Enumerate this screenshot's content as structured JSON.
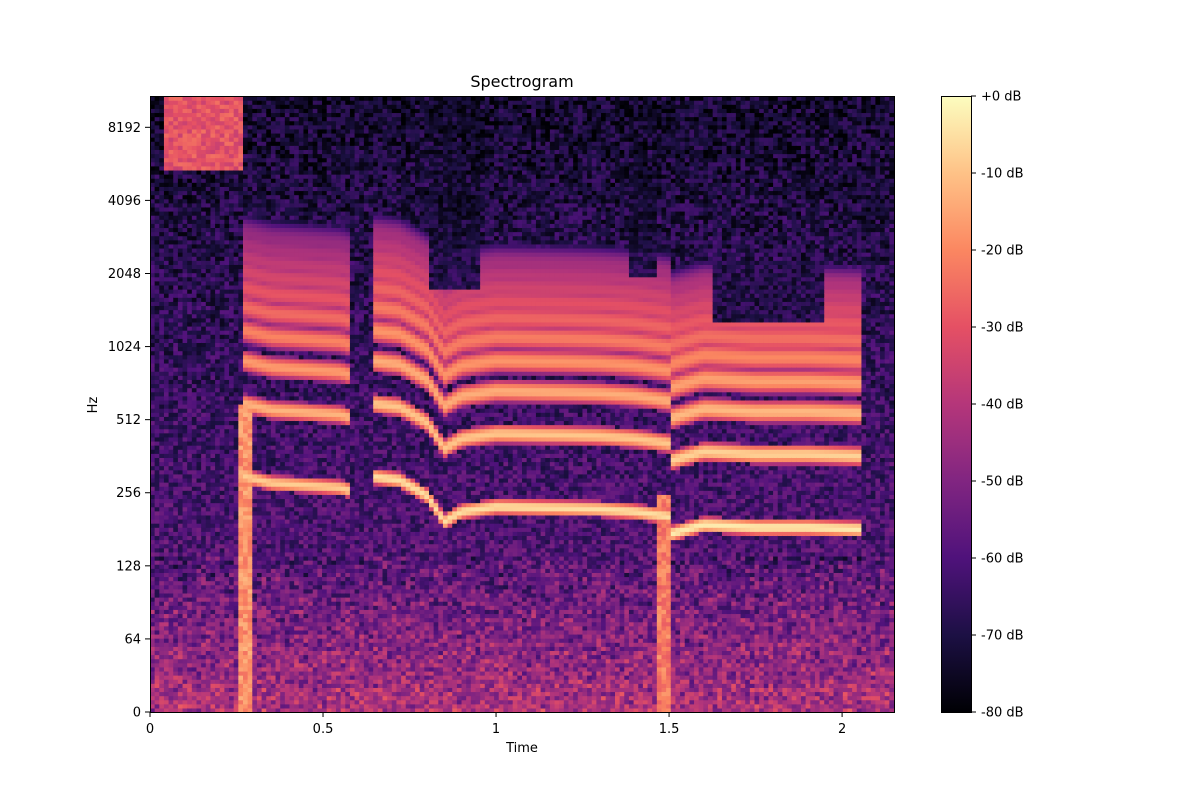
{
  "chart_data": {
    "type": "heatmap",
    "title": "Spectrogram",
    "xlabel": "Time",
    "ylabel": "Hz",
    "x_range": [
      0,
      2.15
    ],
    "y_scale": "symlog",
    "y_range": [
      0,
      11025
    ],
    "x_ticks": [
      {
        "value": 0,
        "label": "0"
      },
      {
        "value": 0.5,
        "label": "0.5"
      },
      {
        "value": 1,
        "label": "1"
      },
      {
        "value": 1.5,
        "label": "1.5"
      },
      {
        "value": 2,
        "label": "2"
      }
    ],
    "y_ticks": [
      {
        "value": 0,
        "label": "0"
      },
      {
        "value": 64,
        "label": "64"
      },
      {
        "value": 128,
        "label": "128"
      },
      {
        "value": 256,
        "label": "256"
      },
      {
        "value": 512,
        "label": "512"
      },
      {
        "value": 1024,
        "label": "1024"
      },
      {
        "value": 2048,
        "label": "2048"
      },
      {
        "value": 4096,
        "label": "4096"
      },
      {
        "value": 8192,
        "label": "8192"
      }
    ],
    "colormap": "magma",
    "colorbar": {
      "range_db": [
        -80,
        0
      ],
      "ticks": [
        {
          "value": 0,
          "label": "+0 dB"
        },
        {
          "value": -10,
          "label": "-10 dB"
        },
        {
          "value": -20,
          "label": "-20 dB"
        },
        {
          "value": -30,
          "label": "-30 dB"
        },
        {
          "value": -40,
          "label": "-40 dB"
        },
        {
          "value": -50,
          "label": "-50 dB"
        },
        {
          "value": -60,
          "label": "-60 dB"
        },
        {
          "value": -70,
          "label": "-70 dB"
        },
        {
          "value": -80,
          "label": "-80 dB"
        }
      ]
    },
    "grid": false,
    "background_db": -55,
    "fundamental_tracks": [
      {
        "points": [
          [
            0.27,
            300
          ],
          [
            0.35,
            282
          ],
          [
            0.45,
            276
          ],
          [
            0.55,
            270
          ],
          [
            0.58,
            262
          ]
        ],
        "level_db": -8
      },
      {
        "points": [
          [
            0.64,
            300
          ],
          [
            0.72,
            290
          ],
          [
            0.8,
            250
          ],
          [
            0.85,
            195
          ],
          [
            0.9,
            215
          ],
          [
            1.0,
            225
          ],
          [
            1.2,
            222
          ],
          [
            1.3,
            220
          ],
          [
            1.4,
            215
          ],
          [
            1.5,
            205
          ]
        ],
        "level_db": -5
      },
      {
        "points": [
          [
            1.51,
            175
          ],
          [
            1.6,
            190
          ],
          [
            1.75,
            185
          ],
          [
            1.9,
            185
          ],
          [
            2.05,
            182
          ]
        ],
        "level_db": -3
      }
    ],
    "harmonic_count": 10,
    "broadband_bursts": [
      {
        "t0": 0.04,
        "t1": 0.27,
        "f0": 5500,
        "f1": 11025,
        "level_db": -30
      },
      {
        "t0": 0.25,
        "t1": 0.3,
        "f0": 0,
        "f1": 600,
        "level_db": -18
      },
      {
        "t0": 1.46,
        "t1": 1.51,
        "f0": 0,
        "f1": 250,
        "level_db": -22
      }
    ],
    "silent_gaps": [
      {
        "t0": 0.8,
        "t1": 0.95,
        "f0": 1800,
        "f1": 11025
      },
      {
        "t0": 1.38,
        "t1": 1.47,
        "f0": 2000,
        "f1": 11025
      },
      {
        "t0": 1.62,
        "t1": 1.95,
        "f0": 1300,
        "f1": 2300
      }
    ]
  }
}
